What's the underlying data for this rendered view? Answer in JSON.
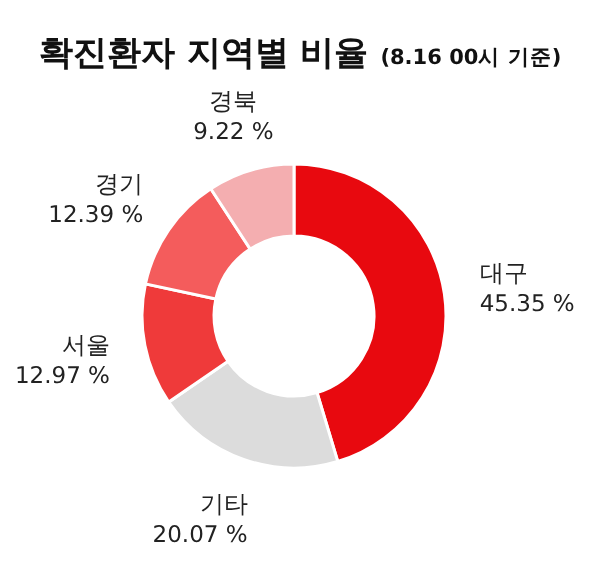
{
  "chart_data": {
    "type": "donut",
    "title": "확진환자 지역별 비율",
    "subtitle": "(8.16 00시 기준)",
    "categories": [
      "대구",
      "기타",
      "서울",
      "경기",
      "경북"
    ],
    "values": [
      45.35,
      20.07,
      12.97,
      12.39,
      9.22
    ],
    "colors": [
      "#e8090f",
      "#dcdcdc",
      "#ef3a3a",
      "#f45c5c",
      "#f4aeb0"
    ],
    "value_labels": [
      "45.35 %",
      "20.07 %",
      "12.97 %",
      "12.39 %",
      "9.22 %"
    ]
  }
}
